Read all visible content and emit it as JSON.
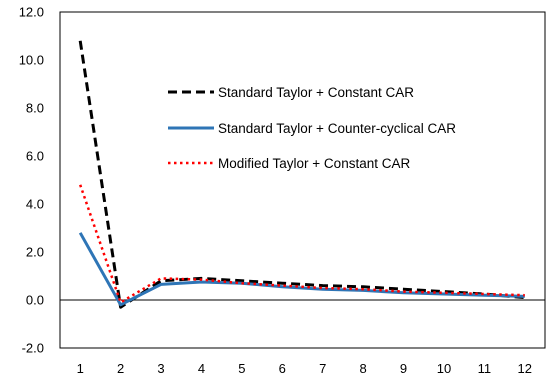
{
  "chart_data": {
    "type": "line",
    "title": "",
    "xlabel": "",
    "ylabel": "",
    "x": [
      1,
      2,
      3,
      4,
      5,
      6,
      7,
      8,
      9,
      10,
      11,
      12
    ],
    "x_tick_labels": [
      "1",
      "2",
      "3",
      "4",
      "5",
      "6",
      "7",
      "8",
      "9",
      "10",
      "11",
      "12"
    ],
    "ylim": [
      -2.0,
      12.0
    ],
    "y_ticks": [
      -2.0,
      0.0,
      2.0,
      4.0,
      6.0,
      8.0,
      10.0,
      12.0
    ],
    "y_tick_labels": [
      "-2.0",
      "0.0",
      "2.0",
      "4.0",
      "6.0",
      "8.0",
      "10.0",
      "12.0"
    ],
    "grid": false,
    "legend_position": "inside-center",
    "series": [
      {
        "name": "Standard Taylor + Constant CAR",
        "color": "#000000",
        "style": "dashed",
        "values": [
          10.8,
          -0.3,
          0.8,
          0.9,
          0.8,
          0.7,
          0.6,
          0.55,
          0.45,
          0.35,
          0.25,
          0.1
        ]
      },
      {
        "name": "Standard Taylor + Counter-cyclical CAR",
        "color": "#2E75B6",
        "style": "solid",
        "values": [
          2.8,
          -0.2,
          0.65,
          0.75,
          0.7,
          0.55,
          0.45,
          0.4,
          0.3,
          0.25,
          0.2,
          0.15
        ]
      },
      {
        "name": "Modified Taylor + Constant CAR",
        "color": "#FF0000",
        "style": "dotted",
        "values": [
          4.8,
          -0.1,
          0.9,
          0.85,
          0.7,
          0.6,
          0.5,
          0.45,
          0.35,
          0.3,
          0.25,
          0.2
        ]
      }
    ]
  }
}
